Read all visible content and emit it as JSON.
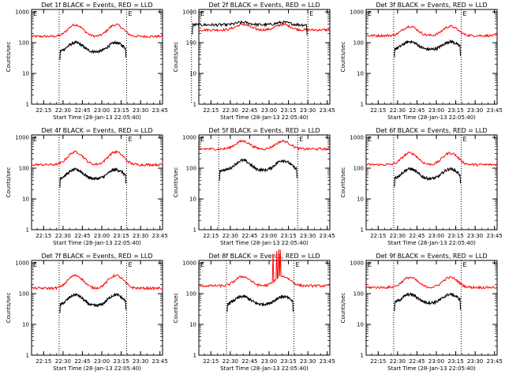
{
  "chart_data": {
    "type": "line",
    "panels": [
      {
        "title": "Det 1f BLACK = Events, RED = LLD",
        "x0": 22.45,
        "x1": 23.32,
        "lld_base": 160,
        "ev_base": 50,
        "hump_lld": 2.4,
        "hump_ev": 2.0,
        "spikes": false
      },
      {
        "title": "Det 2f BLACK = Events, RED = LLD",
        "x0": 22.0,
        "x1": 23.5,
        "lld_base": 260,
        "ev_base": 380,
        "hump_lld": 1.5,
        "hump_ev": 1.2,
        "spikes": false
      },
      {
        "title": "Det 3f BLACK = Events, RED = LLD",
        "x0": 22.45,
        "x1": 23.32,
        "lld_base": 170,
        "ev_base": 60,
        "hump_lld": 2.0,
        "hump_ev": 1.8,
        "spikes": false
      },
      {
        "title": "Det 4f BLACK = Events, RED = LLD",
        "x0": 22.45,
        "x1": 23.32,
        "lld_base": 130,
        "ev_base": 45,
        "hump_lld": 2.6,
        "hump_ev": 2.0,
        "spikes": false
      },
      {
        "title": "Det 5f BLACK = Events, RED = LLD",
        "x0": 22.35,
        "x1": 23.37,
        "lld_base": 420,
        "ev_base": 85,
        "hump_lld": 1.8,
        "hump_ev": 2.1,
        "spikes": false
      },
      {
        "title": "Det 6f BLACK = Events, RED = LLD",
        "x0": 22.45,
        "x1": 23.32,
        "lld_base": 130,
        "ev_base": 45,
        "hump_lld": 2.4,
        "hump_ev": 2.1,
        "spikes": false
      },
      {
        "title": "Det 7f BLACK = Events, RED = LLD",
        "x0": 22.45,
        "x1": 23.32,
        "lld_base": 150,
        "ev_base": 40,
        "hump_lld": 2.6,
        "hump_ev": 2.3,
        "spikes": false
      },
      {
        "title": "Det 8f BLACK = Events, RED = LLD",
        "x0": 22.45,
        "x1": 23.32,
        "lld_base": 180,
        "ev_base": 45,
        "hump_lld": 2.0,
        "hump_ev": 1.8,
        "spikes": true
      },
      {
        "title": "Det 9f BLACK = Events, RED = LLD",
        "x0": 22.45,
        "x1": 23.32,
        "lld_base": 160,
        "ev_base": 50,
        "hump_lld": 2.1,
        "hump_ev": 1.9,
        "spikes": false
      }
    ],
    "xlabel": "Start Time (28-Jan-13 22:05:40)",
    "ylabel": "Counts/sec",
    "x_ticks": [
      "22:15",
      "22:30",
      "22:45",
      "23:00",
      "23:15",
      "23:30",
      "23:45"
    ],
    "x_range": [
      "22:05:40",
      "23:47"
    ],
    "y_ticks": [
      "1",
      "10",
      "100",
      "1000"
    ],
    "y_range": [
      1,
      1200
    ],
    "y_scale": "log",
    "marker_left": "E",
    "marker_right": "E",
    "series_colors": {
      "events": "#000000",
      "lld": "#ff0000"
    },
    "grid": false
  }
}
